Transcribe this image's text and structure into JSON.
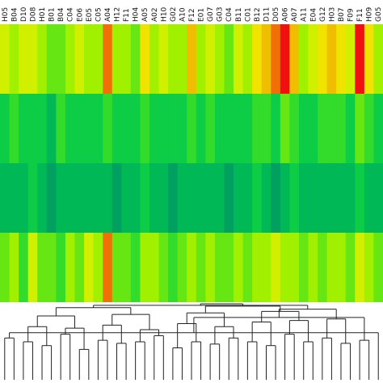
{
  "chart_data": {
    "type": "heatmap",
    "title": "",
    "xlabel": "",
    "ylabel": "",
    "grid": false,
    "legend": "none",
    "columns": [
      "H05",
      "B04",
      "D10",
      "D08",
      "H01",
      "B01",
      "B04",
      "C04",
      "E06",
      "E05",
      "C05",
      "A04",
      "H12",
      "F11",
      "H04",
      "A05",
      "A02",
      "H10",
      "G02",
      "A10",
      "F12",
      "E01",
      "G07",
      "G03",
      "C04",
      "B11",
      "C01",
      "B12",
      "D11",
      "D05",
      "A06",
      "A07",
      "A11",
      "E04",
      "G12",
      "H03",
      "B07",
      "F09",
      "F11",
      "H09",
      "G05"
    ],
    "color_scale": {
      "min_color": "#00a060",
      "mid_colors": [
        "#00c850",
        "#40e020",
        "#a0f000",
        "#f0f000",
        "#f0b000"
      ],
      "max_color": "#f01010",
      "range": [
        0,
        10
      ]
    },
    "rows": [
      {
        "values": [
          6,
          5,
          6,
          6,
          5,
          4,
          4,
          5,
          6,
          5,
          5,
          9,
          5,
          5,
          4,
          7,
          5,
          6,
          5,
          5,
          8,
          5,
          6,
          5,
          4,
          6,
          5,
          7,
          8,
          9,
          10,
          8,
          5,
          6,
          7,
          8,
          7,
          6,
          10,
          7,
          5
        ]
      },
      {
        "values": [
          2,
          3,
          2,
          2,
          2,
          1,
          3,
          2,
          2,
          2,
          2,
          3,
          2,
          2,
          2,
          3,
          2,
          2,
          2,
          2,
          3,
          2,
          3,
          2,
          2,
          2,
          2,
          3,
          3,
          2,
          4,
          3,
          2,
          2,
          3,
          3,
          3,
          2,
          4,
          3,
          2
        ]
      },
      {
        "values": [
          1,
          1,
          1,
          2,
          1,
          0,
          1,
          1,
          1,
          1,
          1,
          1,
          0,
          1,
          1,
          2,
          1,
          1,
          0,
          1,
          1,
          1,
          1,
          1,
          0,
          1,
          1,
          2,
          1,
          0,
          1,
          2,
          1,
          1,
          1,
          1,
          1,
          1,
          2,
          1,
          1
        ]
      },
      {
        "values": [
          4,
          5,
          3,
          6,
          4,
          4,
          3,
          5,
          4,
          6,
          5,
          9,
          4,
          4,
          3,
          5,
          5,
          4,
          3,
          4,
          5,
          4,
          5,
          4,
          4,
          5,
          4,
          5,
          5,
          6,
          5,
          5,
          4,
          5,
          4,
          5,
          5,
          4,
          6,
          5,
          4
        ]
      }
    ],
    "dendrogram": {
      "merges": [
        [
          0,
          1,
          0.55
        ],
        [
          2,
          3,
          0.5
        ],
        [
          4,
          5,
          0.45
        ],
        [
          6,
          7,
          0.6
        ],
        [
          8,
          9,
          0.4
        ],
        [
          10,
          11,
          0.52
        ],
        [
          12,
          13,
          0.48
        ],
        [
          14,
          15,
          0.5
        ],
        [
          16,
          17,
          0.58
        ],
        [
          18,
          19,
          0.42
        ],
        [
          20,
          21,
          0.5
        ],
        [
          22,
          23,
          0.47
        ],
        [
          24,
          25,
          0.55
        ],
        [
          26,
          27,
          0.5
        ],
        [
          28,
          29,
          0.45
        ],
        [
          30,
          31,
          0.6
        ],
        [
          32,
          33,
          0.5
        ],
        [
          34,
          35,
          0.55
        ],
        [
          36,
          37,
          0.48
        ],
        [
          38,
          39,
          0.52
        ],
        [
          40,
          41,
          0.62
        ],
        [
          42,
          43,
          0.7
        ],
        [
          44,
          45,
          0.68
        ],
        [
          46,
          47,
          0.72
        ],
        [
          48,
          49,
          0.66
        ],
        [
          50,
          51,
          0.74
        ],
        [
          52,
          53,
          0.7
        ],
        [
          54,
          55,
          0.76
        ],
        [
          56,
          57,
          0.78
        ],
        [
          58,
          59,
          0.8
        ],
        [
          60,
          61,
          0.82
        ],
        [
          62,
          63,
          0.84
        ],
        [
          64,
          65,
          0.86
        ],
        [
          66,
          67,
          0.88
        ],
        [
          68,
          69,
          0.9
        ],
        [
          70,
          71,
          0.93
        ],
        [
          72,
          73,
          0.95
        ],
        [
          74,
          75,
          0.97
        ],
        [
          76,
          77,
          0.98
        ],
        [
          78,
          79,
          1.0
        ]
      ]
    }
  }
}
